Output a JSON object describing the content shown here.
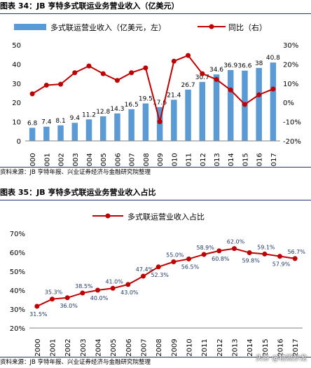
{
  "chart_data": [
    {
      "type": "bar+line",
      "title": "图表 34：JB 亨特多式联运业务营业收入（亿美元）",
      "categories": [
        "2000",
        "2001",
        "2002",
        "2003",
        "2004",
        "2005",
        "2006",
        "2007",
        "2008",
        "2009",
        "2010",
        "2011",
        "2012",
        "2013",
        "2014",
        "2015",
        "2016",
        "2017"
      ],
      "series": [
        {
          "name": "多式联运营业收入（亿美元，左）",
          "type": "bar",
          "axis": "left",
          "color": "#5b9bd5",
          "values": [
            6.8,
            7.4,
            8.1,
            9.4,
            11.2,
            12.8,
            14.3,
            16.5,
            19.5,
            17.6,
            21.4,
            26.7,
            30.7,
            34.6,
            36.9,
            36.6,
            38.0,
            40.8
          ]
        },
        {
          "name": "同比（右）",
          "type": "line",
          "axis": "right",
          "color": "#c00000",
          "values": [
            4.5,
            9,
            9.5,
            15.5,
            19,
            15,
            11.5,
            15.5,
            18,
            -10,
            21.5,
            24.5,
            15,
            12,
            6.5,
            -1,
            4,
            7
          ]
        }
      ],
      "ylim_left": [
        0,
        50
      ],
      "yticks_left": [
        "0",
        "10",
        "20",
        "30",
        "40",
        "50"
      ],
      "ylim_right": [
        -20,
        30
      ],
      "yticks_right": [
        "-20%",
        "-10%",
        "0%",
        "10%",
        "20%",
        "30%"
      ],
      "legend_position": "top",
      "grid": false
    },
    {
      "type": "line",
      "title": "图表 35：JB 亨特多式联运业务营业收入占比",
      "categories": [
        "2000",
        "2001",
        "2002",
        "2003",
        "2004",
        "2005",
        "2006",
        "2007",
        "2008",
        "2009",
        "2010",
        "2011",
        "2012",
        "2013",
        "2014",
        "2015",
        "2016",
        "2017"
      ],
      "series": [
        {
          "name": "多式联运营业收入占比",
          "color": "#c00000",
          "values": [
            31.5,
            35.3,
            36.0,
            38.5,
            40.0,
            41.0,
            43.0,
            47.4,
            52.3,
            55.0,
            56.5,
            58.9,
            60.8,
            62.0,
            59.8,
            59.1,
            57.9,
            56.7
          ],
          "labels": [
            "31.5%",
            "35.3%",
            "36.0%",
            "38.5%",
            "40.0%",
            "41.0%",
            "43.0%",
            "47.4%",
            "52.3%",
            "55.0%",
            "56.5%",
            "58.9%",
            "60.8%",
            "62.0%",
            "59.8%",
            "59.1%",
            "57.9%",
            "56.7%"
          ]
        }
      ],
      "ylim": [
        20,
        70
      ],
      "yticks": [
        "20%",
        "30%",
        "40%",
        "50%",
        "60%",
        "70%"
      ],
      "legend_position": "top",
      "grid": false
    }
  ],
  "sources": [
    "资料来源：JB 亨特年报、兴业证券经济与金融研究院整理",
    "资料来源：JB 亨特年报、兴业证券经济与金融研究院整理"
  ],
  "watermark": "头条 @物流沙龙"
}
